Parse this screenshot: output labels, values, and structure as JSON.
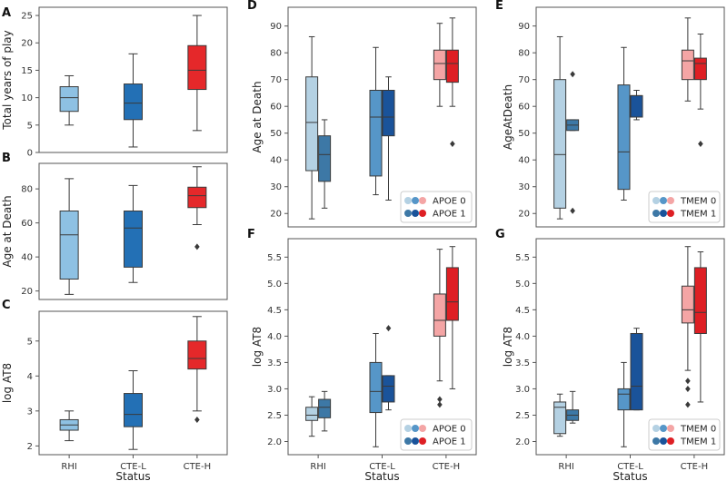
{
  "figure": {
    "status_label": "Status",
    "colors": {
      "RHI": "#8ec1e3",
      "CTE-L": "#2370b5",
      "CTE-H": "#e5282a",
      "RHI_0": "#b4d1e3",
      "RHI_1": "#3d78a6",
      "CTE-L_0": "#5696c8",
      "CTE-L_1": "#1a539a",
      "CTE-H_0": "#f4a5a5",
      "CTE-H_1": "#de1f24",
      "edge": "#3a3a3a",
      "axes": "#555555"
    }
  },
  "chart_data": [
    {
      "panel": "A",
      "type": "box",
      "ylabel": "Total years of play",
      "xlabel": "",
      "categories": [
        "RHI",
        "CTE-L",
        "CTE-H"
      ],
      "show_xticks": false,
      "ylim": [
        0,
        26.5
      ],
      "yticks": [
        0,
        5,
        10,
        15,
        20,
        25
      ],
      "boxes": [
        {
          "cat": "RHI",
          "whislo": 5,
          "q1": 7.5,
          "med": 10,
          "q3": 12,
          "whishi": 14,
          "fliers": []
        },
        {
          "cat": "CTE-L",
          "whislo": 1,
          "q1": 6,
          "med": 9,
          "q3": 12.5,
          "whishi": 18,
          "fliers": []
        },
        {
          "cat": "CTE-H",
          "whislo": 4,
          "q1": 11.5,
          "med": 15,
          "q3": 19.5,
          "whishi": 25,
          "fliers": []
        }
      ]
    },
    {
      "panel": "B",
      "type": "box",
      "ylabel": "Age at Death",
      "xlabel": "",
      "categories": [
        "RHI",
        "CTE-L",
        "CTE-H"
      ],
      "show_xticks": false,
      "ylim": [
        15,
        95
      ],
      "yticks": [
        20,
        40,
        60,
        80
      ],
      "boxes": [
        {
          "cat": "RHI",
          "whislo": 18,
          "q1": 27,
          "med": 53,
          "q3": 67,
          "whishi": 86,
          "fliers": []
        },
        {
          "cat": "CTE-L",
          "whislo": 25,
          "q1": 34,
          "med": 57,
          "q3": 67,
          "whishi": 82,
          "fliers": []
        },
        {
          "cat": "CTE-H",
          "whislo": 59,
          "q1": 69,
          "med": 76,
          "q3": 81,
          "whishi": 93,
          "fliers": [
            46
          ]
        }
      ]
    },
    {
      "panel": "C",
      "type": "box",
      "ylabel": "log AT8",
      "xlabel": "Status",
      "categories": [
        "RHI",
        "CTE-L",
        "CTE-H"
      ],
      "show_xticks": true,
      "ylim": [
        1.75,
        5.85
      ],
      "yticks": [
        2,
        3,
        4,
        5
      ],
      "boxes": [
        {
          "cat": "RHI",
          "whislo": 2.15,
          "q1": 2.45,
          "med": 2.6,
          "q3": 2.75,
          "whishi": 3.0,
          "fliers": []
        },
        {
          "cat": "CTE-L",
          "whislo": 1.9,
          "q1": 2.55,
          "med": 2.9,
          "q3": 3.5,
          "whishi": 4.15,
          "fliers": []
        },
        {
          "cat": "CTE-H",
          "whislo": 3.0,
          "q1": 4.2,
          "med": 4.5,
          "q3": 5.0,
          "whishi": 5.7,
          "fliers": [
            2.75
          ]
        }
      ]
    },
    {
      "panel": "D",
      "type": "grouped-box",
      "ylabel": "Age at Death",
      "xlabel": "",
      "categories": [
        "RHI",
        "CTE-L",
        "CTE-H"
      ],
      "show_xticks": false,
      "ylim": [
        15,
        97
      ],
      "yticks": [
        20,
        30,
        40,
        50,
        60,
        70,
        80,
        90
      ],
      "legend": {
        "position": "lower-right",
        "entries": [
          "APOE 0",
          "APOE 1"
        ]
      },
      "boxes": [
        {
          "cat": "RHI",
          "group": 0,
          "whislo": 18,
          "q1": 36,
          "med": 54,
          "q3": 71,
          "whishi": 86,
          "fliers": []
        },
        {
          "cat": "RHI",
          "group": 1,
          "whislo": 22,
          "q1": 32,
          "med": 42,
          "q3": 49,
          "whishi": 55,
          "fliers": []
        },
        {
          "cat": "CTE-L",
          "group": 0,
          "whislo": 27,
          "q1": 34,
          "med": 56,
          "q3": 66,
          "whishi": 82,
          "fliers": []
        },
        {
          "cat": "CTE-L",
          "group": 1,
          "whislo": 25,
          "q1": 49,
          "med": 56,
          "q3": 66,
          "whishi": 71,
          "fliers": []
        },
        {
          "cat": "CTE-H",
          "group": 0,
          "whislo": 60,
          "q1": 70,
          "med": 76,
          "q3": 81,
          "whishi": 91,
          "fliers": []
        },
        {
          "cat": "CTE-H",
          "group": 1,
          "whislo": 60,
          "q1": 69,
          "med": 76,
          "q3": 81,
          "whishi": 93,
          "fliers": [
            46
          ]
        }
      ]
    },
    {
      "panel": "E",
      "type": "grouped-box",
      "ylabel": "AgeAtDeath",
      "xlabel": "",
      "categories": [
        "RHI",
        "CTE-L",
        "CTE-H"
      ],
      "show_xticks": false,
      "ylim": [
        15,
        97
      ],
      "yticks": [
        20,
        30,
        40,
        50,
        60,
        70,
        80,
        90
      ],
      "legend": {
        "position": "lower-right",
        "entries": [
          "TMEM 0",
          "TMEM 1"
        ]
      },
      "boxes": [
        {
          "cat": "RHI",
          "group": 0,
          "whislo": 18,
          "q1": 22,
          "med": 42,
          "q3": 70,
          "whishi": 86,
          "fliers": []
        },
        {
          "cat": "RHI",
          "group": 1,
          "whislo": 51,
          "q1": 51,
          "med": 53,
          "q3": 55,
          "whishi": 55,
          "fliers": [
            72,
            21
          ]
        },
        {
          "cat": "CTE-L",
          "group": 0,
          "whislo": 25,
          "q1": 29,
          "med": 43,
          "q3": 68,
          "whishi": 82,
          "fliers": []
        },
        {
          "cat": "CTE-L",
          "group": 1,
          "whislo": 55,
          "q1": 56,
          "med": 64,
          "q3": 64,
          "whishi": 66,
          "fliers": []
        },
        {
          "cat": "CTE-H",
          "group": 0,
          "whislo": 62,
          "q1": 70,
          "med": 77,
          "q3": 81,
          "whishi": 93,
          "fliers": []
        },
        {
          "cat": "CTE-H",
          "group": 1,
          "whislo": 59,
          "q1": 70,
          "med": 76,
          "q3": 78,
          "whishi": 87,
          "fliers": [
            46
          ]
        }
      ]
    },
    {
      "panel": "F",
      "type": "grouped-box",
      "ylabel": "log AT8",
      "xlabel": "Status",
      "categories": [
        "RHI",
        "CTE-L",
        "CTE-H"
      ],
      "show_xticks": true,
      "ylim": [
        1.75,
        5.85
      ],
      "yticks": [
        2.0,
        2.5,
        3.0,
        3.5,
        4.0,
        4.5,
        5.0,
        5.5
      ],
      "legend": {
        "position": "lower-right",
        "entries": [
          "APOE 0",
          "APOE 1"
        ]
      },
      "boxes": [
        {
          "cat": "RHI",
          "group": 0,
          "whislo": 2.1,
          "q1": 2.4,
          "med": 2.5,
          "q3": 2.65,
          "whishi": 2.85,
          "fliers": []
        },
        {
          "cat": "RHI",
          "group": 1,
          "whislo": 2.2,
          "q1": 2.45,
          "med": 2.65,
          "q3": 2.8,
          "whishi": 2.95,
          "fliers": []
        },
        {
          "cat": "CTE-L",
          "group": 0,
          "whislo": 1.9,
          "q1": 2.55,
          "med": 2.95,
          "q3": 3.5,
          "whishi": 4.05,
          "fliers": []
        },
        {
          "cat": "CTE-L",
          "group": 1,
          "whislo": 2.6,
          "q1": 2.75,
          "med": 3.05,
          "q3": 3.25,
          "whishi": 3.25,
          "fliers": [
            4.15
          ]
        },
        {
          "cat": "CTE-H",
          "group": 0,
          "whislo": 3.15,
          "q1": 4.0,
          "med": 4.3,
          "q3": 4.8,
          "whishi": 5.65,
          "fliers": [
            2.8,
            2.7
          ]
        },
        {
          "cat": "CTE-H",
          "group": 1,
          "whislo": 3.0,
          "q1": 4.3,
          "med": 4.65,
          "q3": 5.3,
          "whishi": 5.7,
          "fliers": []
        }
      ]
    },
    {
      "panel": "G",
      "type": "grouped-box",
      "ylabel": "log AT8",
      "xlabel": "Status",
      "categories": [
        "RHI",
        "CTE-L",
        "CTE-H"
      ],
      "show_xticks": true,
      "ylim": [
        1.75,
        5.85
      ],
      "yticks": [
        2.0,
        2.5,
        3.0,
        3.5,
        4.0,
        4.5,
        5.0,
        5.5
      ],
      "legend": {
        "position": "lower-right",
        "entries": [
          "TMEM 0",
          "TMEM 1"
        ]
      },
      "boxes": [
        {
          "cat": "RHI",
          "group": 0,
          "whislo": 2.1,
          "q1": 2.15,
          "med": 2.65,
          "q3": 2.75,
          "whishi": 2.9,
          "fliers": []
        },
        {
          "cat": "RHI",
          "group": 1,
          "whislo": 2.35,
          "q1": 2.4,
          "med": 2.5,
          "q3": 2.6,
          "whishi": 2.95,
          "fliers": []
        },
        {
          "cat": "CTE-L",
          "group": 0,
          "whislo": 1.9,
          "q1": 2.6,
          "med": 2.9,
          "q3": 3.0,
          "whishi": 3.5,
          "fliers": []
        },
        {
          "cat": "CTE-L",
          "group": 1,
          "whislo": 2.6,
          "q1": 2.6,
          "med": 3.05,
          "q3": 4.05,
          "whishi": 4.15,
          "fliers": []
        },
        {
          "cat": "CTE-H",
          "group": 0,
          "whislo": 3.35,
          "q1": 4.25,
          "med": 4.5,
          "q3": 4.95,
          "whishi": 5.7,
          "fliers": [
            3.15,
            3.0,
            2.7
          ]
        },
        {
          "cat": "CTE-H",
          "group": 1,
          "whislo": 2.75,
          "q1": 4.05,
          "med": 4.45,
          "q3": 5.3,
          "whishi": 5.6,
          "fliers": []
        }
      ]
    }
  ]
}
